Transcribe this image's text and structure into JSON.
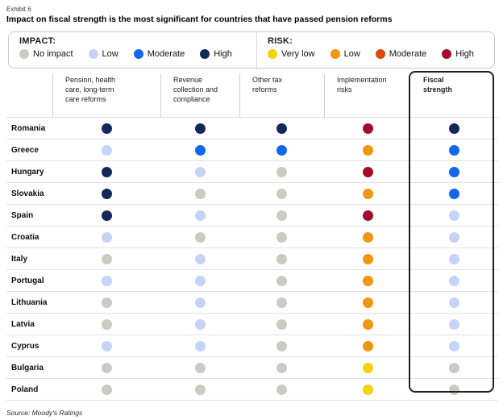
{
  "exhibit_label": "Exhibit 6",
  "title": "Impact on fiscal strength is the most significant for countries that have passed pension reforms",
  "source": "Source: Moody's Ratings",
  "legend": {
    "impact": {
      "heading": "IMPACT:",
      "items": [
        {
          "label": "No impact",
          "color": "#CBCBC4"
        },
        {
          "label": "Low",
          "color": "#C5D4F6"
        },
        {
          "label": "Moderate",
          "color": "#1366EE"
        },
        {
          "label": "High",
          "color": "#14275C"
        }
      ]
    },
    "risk": {
      "heading": "RISK:",
      "items": [
        {
          "label": "Very low",
          "color": "#F5D10E"
        },
        {
          "label": "Low",
          "color": "#F0960F"
        },
        {
          "label": "Moderate",
          "color": "#DC470A"
        },
        {
          "label": "High",
          "color": "#A30D2D"
        }
      ]
    }
  },
  "chart_data": {
    "type": "heatmap",
    "title": "Impact on fiscal strength is the most significant for countries that have passed pension reforms",
    "columns": [
      "Pension, health care, long-term care reforms",
      "Revenue collection and compliance",
      "Other tax reforms",
      "Implementation risks",
      "Fiscal strength"
    ],
    "impact_scale": [
      "No impact",
      "Low",
      "Moderate",
      "High"
    ],
    "risk_scale": [
      "Very low",
      "Low",
      "Moderate",
      "High"
    ],
    "risk_column_index": 3,
    "impact_colors": {
      "No impact": "#CBCBC4",
      "Low": "#C5D4F6",
      "Moderate": "#1366EE",
      "High": "#14275C"
    },
    "risk_colors": {
      "Very low": "#F5D10E",
      "Low": "#F0960F",
      "Moderate": "#DC470A",
      "High": "#A30D2D"
    },
    "rows": [
      {
        "country": "Romania",
        "values": [
          "High",
          "High",
          "High",
          "High",
          "High"
        ]
      },
      {
        "country": "Greece",
        "values": [
          "Low",
          "Moderate",
          "Moderate",
          "Low",
          "Moderate"
        ]
      },
      {
        "country": "Hungary",
        "values": [
          "High",
          "Low",
          "No impact",
          "High",
          "Moderate"
        ]
      },
      {
        "country": "Slovakia",
        "values": [
          "High",
          "No impact",
          "No impact",
          "Low",
          "Moderate"
        ]
      },
      {
        "country": "Spain",
        "values": [
          "High",
          "Low",
          "No impact",
          "High",
          "Low"
        ]
      },
      {
        "country": "Croatia",
        "values": [
          "Low",
          "No impact",
          "No impact",
          "Low",
          "Low"
        ]
      },
      {
        "country": "Italy",
        "values": [
          "No impact",
          "Low",
          "No impact",
          "Low",
          "Low"
        ]
      },
      {
        "country": "Portugal",
        "values": [
          "Low",
          "Low",
          "No impact",
          "Low",
          "Low"
        ]
      },
      {
        "country": "Lithuania",
        "values": [
          "No impact",
          "Low",
          "No impact",
          "Low",
          "Low"
        ]
      },
      {
        "country": "Latvia",
        "values": [
          "No impact",
          "Low",
          "No impact",
          "Low",
          "Low"
        ]
      },
      {
        "country": "Cyprus",
        "values": [
          "Low",
          "Low",
          "No impact",
          "Low",
          "Low"
        ]
      },
      {
        "country": "Bulgaria",
        "values": [
          "No impact",
          "No impact",
          "No impact",
          "Very low",
          "No impact"
        ]
      },
      {
        "country": "Poland",
        "values": [
          "No impact",
          "No impact",
          "No impact",
          "Very low",
          "No impact"
        ]
      }
    ]
  }
}
